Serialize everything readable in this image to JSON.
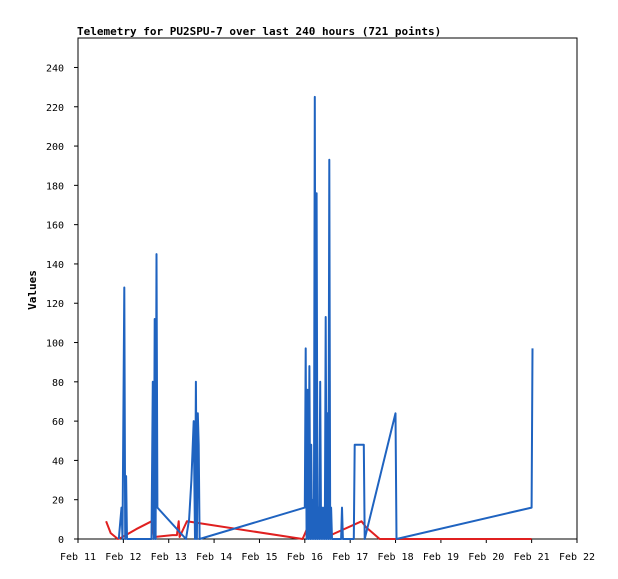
{
  "chart_data": {
    "type": "line",
    "title": "Telemetry for PU2SPU-7 over last 240 hours (721 points)",
    "xlabel": "",
    "ylabel": "Values",
    "x_ticks": [
      "Feb 11",
      "Feb 12",
      "Feb 13",
      "Feb 14",
      "Feb 15",
      "Feb 16",
      "Feb 17",
      "Feb 18",
      "Feb 19",
      "Feb 20",
      "Feb 21",
      "Feb 22"
    ],
    "y_ticks": [
      0,
      20,
      40,
      60,
      80,
      100,
      120,
      140,
      160,
      180,
      200,
      220,
      240
    ],
    "xlim": [
      0,
      11
    ],
    "ylim": [
      0,
      255
    ],
    "grid": false,
    "legend": "none",
    "series": [
      {
        "color": "#e02020",
        "points": [
          [
            0.62,
            9
          ],
          [
            0.72,
            3
          ],
          [
            0.88,
            0
          ],
          [
            0.98,
            1
          ],
          [
            1.28,
            5
          ],
          [
            1.62,
            9
          ],
          [
            1.68,
            1
          ],
          [
            2.08,
            2
          ],
          [
            2.18,
            2
          ],
          [
            2.22,
            9
          ],
          [
            2.24,
            1
          ],
          [
            2.4,
            9
          ],
          [
            4.95,
            0
          ],
          [
            5.1,
            8
          ],
          [
            5.25,
            3
          ],
          [
            5.35,
            9
          ],
          [
            5.45,
            8
          ],
          [
            5.48,
            1
          ],
          [
            6.25,
            9
          ],
          [
            6.35,
            6
          ],
          [
            6.65,
            0
          ],
          [
            10.0,
            0
          ]
        ]
      },
      {
        "color": "#1f63c0",
        "points": [
          [
            0.9,
            0
          ],
          [
            0.96,
            16
          ],
          [
            0.98,
            0
          ],
          [
            1.02,
            128
          ],
          [
            1.04,
            0
          ],
          [
            1.06,
            32
          ],
          [
            1.08,
            0
          ],
          [
            1.62,
            0
          ],
          [
            1.65,
            80
          ],
          [
            1.67,
            0
          ],
          [
            1.69,
            112
          ],
          [
            1.71,
            0
          ],
          [
            1.73,
            145
          ],
          [
            1.75,
            16
          ],
          [
            2.38,
            0
          ],
          [
            2.45,
            10
          ],
          [
            2.5,
            30
          ],
          [
            2.55,
            60
          ],
          [
            2.58,
            0
          ],
          [
            2.6,
            80
          ],
          [
            2.62,
            0
          ],
          [
            2.64,
            64
          ],
          [
            2.66,
            48
          ],
          [
            2.68,
            0
          ],
          [
            5.0,
            16
          ],
          [
            5.02,
            97
          ],
          [
            5.04,
            0
          ],
          [
            5.06,
            76
          ],
          [
            5.08,
            0
          ],
          [
            5.1,
            88
          ],
          [
            5.12,
            0
          ],
          [
            5.14,
            48
          ],
          [
            5.16,
            0
          ],
          [
            5.18,
            20
          ],
          [
            5.2,
            0
          ],
          [
            5.22,
            225
          ],
          [
            5.24,
            0
          ],
          [
            5.26,
            176
          ],
          [
            5.28,
            0
          ],
          [
            5.3,
            16
          ],
          [
            5.32,
            0
          ],
          [
            5.34,
            80
          ],
          [
            5.36,
            0
          ],
          [
            5.38,
            16
          ],
          [
            5.4,
            0
          ],
          [
            5.42,
            16
          ],
          [
            5.44,
            0
          ],
          [
            5.46,
            113
          ],
          [
            5.48,
            0
          ],
          [
            5.5,
            64
          ],
          [
            5.52,
            0
          ],
          [
            5.54,
            193
          ],
          [
            5.56,
            0
          ],
          [
            5.58,
            16
          ],
          [
            5.6,
            0
          ],
          [
            5.8,
            0
          ],
          [
            5.82,
            16
          ],
          [
            5.84,
            0
          ],
          [
            6.08,
            0
          ],
          [
            6.1,
            48
          ],
          [
            6.3,
            48
          ],
          [
            6.32,
            0
          ],
          [
            7.0,
            64
          ],
          [
            7.02,
            0
          ],
          [
            10.0,
            16
          ],
          [
            10.02,
            97
          ]
        ]
      }
    ]
  }
}
